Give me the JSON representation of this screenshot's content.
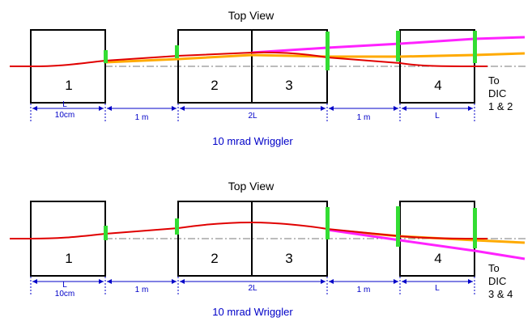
{
  "colors": {
    "magnet_outline": "#000000",
    "axis": "#7a7a7a",
    "dimension": "#0000c8",
    "marker_green": "#33dd33",
    "trajectory_red": "#e00000",
    "trajectory_orange": "#ffaa00",
    "trajectory_magenta": "#ff22ff"
  },
  "panels": [
    {
      "title": "Top View",
      "magnets": [
        "1",
        "2",
        "3",
        "4"
      ],
      "destination": [
        "To",
        "DIC",
        "1 & 2"
      ],
      "dimensions": {
        "first": "L",
        "first_sub": "10cm",
        "gap1": "1 m",
        "middle": "2L",
        "gap2": "1 m",
        "last": "L"
      },
      "caption": "10 mrad  Wriggler"
    },
    {
      "title": "Top View",
      "magnets": [
        "1",
        "2",
        "3",
        "4"
      ],
      "destination": [
        "To",
        "DIC",
        "3 & 4"
      ],
      "dimensions": {
        "first": "L",
        "first_sub": "10cm",
        "gap1": "1 m",
        "middle": "2L",
        "gap2": "1 m",
        "last": "L"
      },
      "caption": "10 mrad  Wriggler"
    }
  ]
}
